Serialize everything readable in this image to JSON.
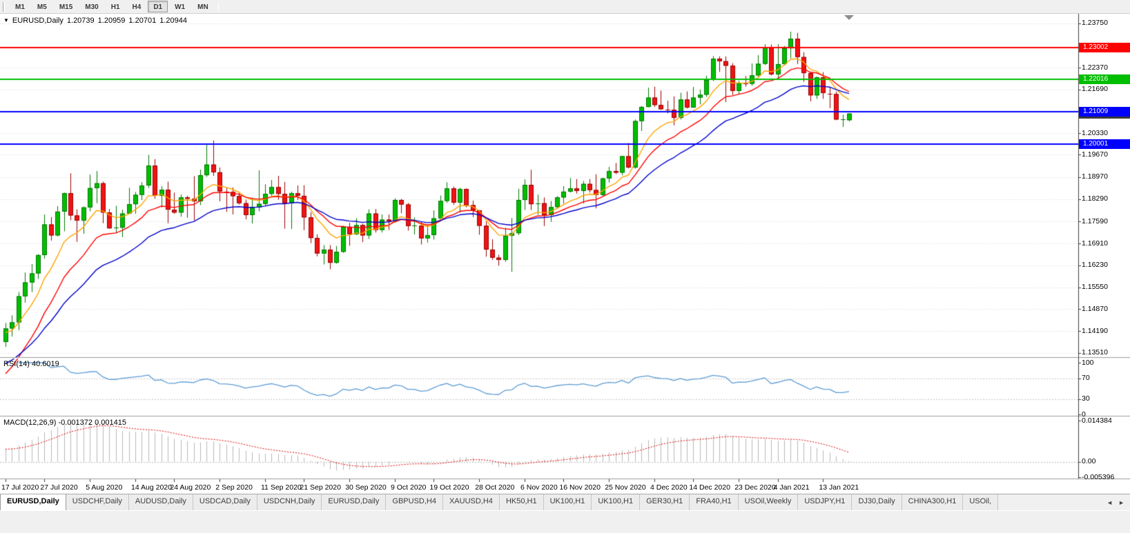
{
  "toolbar": {
    "periods": [
      {
        "label": "M1"
      },
      {
        "label": "M5"
      },
      {
        "label": "M15"
      },
      {
        "label": "M30"
      },
      {
        "label": "H1"
      },
      {
        "label": "H4"
      },
      {
        "label": "D1",
        "active": true
      },
      {
        "label": "W1"
      },
      {
        "label": "MN"
      }
    ]
  },
  "chart": {
    "dropdown_icon": "▼",
    "info": {
      "symbol": "EURUSD,Daily",
      "open": "1.20739",
      "high": "1.20959",
      "low": "1.20701",
      "close": "1.20944"
    }
  },
  "chart_data": {
    "type": "candlestick",
    "title": "EURUSD,Daily",
    "price_range": [
      1.134,
      1.24
    ],
    "colors": {
      "up_body": "#00BE00",
      "up_wick": "#007700",
      "down_body": "#F01414",
      "down_wick": "#990000",
      "grid": "#D9D9D9",
      "axis_line": "#3c3c3c",
      "separator": "#9a9a9a"
    },
    "y_ticks": [
      {
        "label": "1.23750",
        "v": 1.2375
      },
      {
        "label": "1.22370",
        "v": 1.2237
      },
      {
        "label": "1.21690",
        "v": 1.2169
      },
      {
        "label": "1.20330",
        "v": 1.2033
      },
      {
        "label": "1.19670",
        "v": 1.1967
      },
      {
        "label": "1.18970",
        "v": 1.1897
      },
      {
        "label": "1.18290",
        "v": 1.1829
      },
      {
        "label": "1.17590",
        "v": 1.1759
      },
      {
        "label": "1.16910",
        "v": 1.1691
      },
      {
        "label": "1.16230",
        "v": 1.1623
      },
      {
        "label": "1.15550",
        "v": 1.1555
      },
      {
        "label": "1.14870",
        "v": 1.1487
      },
      {
        "label": "1.14190",
        "v": 1.1419
      },
      {
        "label": "1.13510",
        "v": 1.1351
      }
    ],
    "x_ticks": [
      {
        "label": "17 Jul 2020",
        "i": 0
      },
      {
        "label": "27 Jul 2020",
        "i": 6
      },
      {
        "label": "5 Aug 2020",
        "i": 13
      },
      {
        "label": "14 Aug 2020",
        "i": 20
      },
      {
        "label": "24 Aug 2020",
        "i": 26
      },
      {
        "label": "2 Sep 2020",
        "i": 33
      },
      {
        "label": "11 Sep 2020",
        "i": 40
      },
      {
        "label": "21 Sep 2020",
        "i": 46
      },
      {
        "label": "30 Sep 2020",
        "i": 53
      },
      {
        "label": "9 Oct 2020",
        "i": 60
      },
      {
        "label": "19 Oct 2020",
        "i": 66
      },
      {
        "label": "28 Oct 2020",
        "i": 73
      },
      {
        "label": "6 Nov 2020",
        "i": 80
      },
      {
        "label": "16 Nov 2020",
        "i": 86
      },
      {
        "label": "25 Nov 2020",
        "i": 93
      },
      {
        "label": "4 Dec 2020",
        "i": 100
      },
      {
        "label": "14 Dec 2020",
        "i": 106
      },
      {
        "label": "23 Dec 2020",
        "i": 113
      },
      {
        "label": "4 Jan 2021",
        "i": 119
      },
      {
        "label": "13 Jan 2021",
        "i": 126
      }
    ],
    "hlines": [
      {
        "price": 1.23002,
        "label": "1.23002",
        "color": "#FF0000"
      },
      {
        "price": 1.22016,
        "label": "1.22016",
        "color": "#00BE00"
      },
      {
        "price": 1.21009,
        "label": "1.21009",
        "color": "#0000FF"
      },
      {
        "price": 1.20001,
        "label": "1.20001",
        "color": "#0000FF"
      }
    ],
    "current_price": {
      "value": 1.20944,
      "label": "1.20944",
      "box_color": "#3a3a3a"
    },
    "moving_averages": [
      {
        "name": "fast",
        "type": "ema",
        "period": 8,
        "seed": 1.141,
        "color": "#FFA500"
      },
      {
        "name": "medium",
        "type": "ema",
        "period": 14,
        "seed": 1.1265,
        "color": "#FF0000"
      },
      {
        "name": "slow",
        "type": "ema",
        "period": 25,
        "seed": 1.131,
        "color": "#0000CD"
      }
    ],
    "rsi": {
      "label": "RSI(14) 40.6019",
      "period": 14,
      "value": 40.6019,
      "color": "#5B9BD5",
      "range": [
        0,
        100
      ],
      "levels": [
        {
          "label": "100",
          "v": 100,
          "line": false
        },
        {
          "label": "70",
          "v": 70,
          "line": true
        },
        {
          "label": "30",
          "v": 30,
          "line": true
        },
        {
          "label": "0",
          "v": 0,
          "line": false
        }
      ]
    },
    "macd": {
      "label": "MACD(12,26,9) -0.001372 0.001415",
      "fast": 12,
      "slow": 26,
      "signal": 9,
      "main_value": -0.001372,
      "signal_value": 0.001415,
      "seed_fast": 1.134,
      "seed_slow": 1.13,
      "hist_color": "#B8B8B8",
      "signal_color": "#E00000",
      "range": [
        -0.005396,
        0.014384
      ],
      "axis_labels": [
        {
          "label": "0.014384",
          "v": 0.014384
        },
        {
          "label": "0.00",
          "v": 0
        },
        {
          "label": "-0.005396",
          "v": -0.005396
        }
      ]
    },
    "ohlc": [
      [
        1.1385,
        1.1444,
        1.137,
        1.1427
      ],
      [
        1.1427,
        1.1468,
        1.1402,
        1.1446
      ],
      [
        1.1446,
        1.154,
        1.1422,
        1.1527
      ],
      [
        1.1527,
        1.1601,
        1.1507,
        1.157
      ],
      [
        1.157,
        1.1627,
        1.154,
        1.1598
      ],
      [
        1.1598,
        1.1658,
        1.1581,
        1.1655
      ],
      [
        1.1655,
        1.1781,
        1.1644,
        1.175
      ],
      [
        1.175,
        1.1773,
        1.17,
        1.1716
      ],
      [
        1.1716,
        1.1807,
        1.1713,
        1.179
      ],
      [
        1.179,
        1.1849,
        1.1729,
        1.1847
      ],
      [
        1.1847,
        1.1909,
        1.1763,
        1.1778
      ],
      [
        1.1778,
        1.1797,
        1.1696,
        1.1762
      ],
      [
        1.1762,
        1.1806,
        1.1721,
        1.1803
      ],
      [
        1.1803,
        1.1905,
        1.1791,
        1.1863
      ],
      [
        1.1863,
        1.1916,
        1.1816,
        1.1878
      ],
      [
        1.1878,
        1.1883,
        1.1754,
        1.1787
      ],
      [
        1.1787,
        1.1798,
        1.1737,
        1.1738
      ],
      [
        1.1738,
        1.1808,
        1.1722,
        1.174
      ],
      [
        1.174,
        1.1796,
        1.1711,
        1.1784
      ],
      [
        1.1784,
        1.1864,
        1.1782,
        1.1813
      ],
      [
        1.1813,
        1.1851,
        1.1783,
        1.1842
      ],
      [
        1.1842,
        1.1881,
        1.1826,
        1.1871
      ],
      [
        1.1871,
        1.1966,
        1.1863,
        1.1933
      ],
      [
        1.1933,
        1.1953,
        1.183,
        1.1839
      ],
      [
        1.1839,
        1.1869,
        1.1803,
        1.1858
      ],
      [
        1.1858,
        1.1883,
        1.1754,
        1.1796
      ],
      [
        1.1796,
        1.1849,
        1.1783,
        1.1787
      ],
      [
        1.1787,
        1.1843,
        1.1774,
        1.1834
      ],
      [
        1.1834,
        1.1839,
        1.1771,
        1.183
      ],
      [
        1.183,
        1.19,
        1.1763,
        1.1822
      ],
      [
        1.1822,
        1.192,
        1.181,
        1.1903
      ],
      [
        1.1903,
        1.1997,
        1.1898,
        1.1936
      ],
      [
        1.1936,
        1.2011,
        1.1901,
        1.1912
      ],
      [
        1.1912,
        1.1927,
        1.1822,
        1.1853
      ],
      [
        1.1853,
        1.1864,
        1.1789,
        1.1851
      ],
      [
        1.1851,
        1.1865,
        1.1781,
        1.1838
      ],
      [
        1.1838,
        1.1848,
        1.1812,
        1.1816
      ],
      [
        1.1816,
        1.1827,
        1.1766,
        1.1779
      ],
      [
        1.1779,
        1.1834,
        1.1753,
        1.1803
      ],
      [
        1.1803,
        1.1918,
        1.1791,
        1.1814
      ],
      [
        1.1814,
        1.1875,
        1.1809,
        1.1845
      ],
      [
        1.1845,
        1.1888,
        1.1839,
        1.1866
      ],
      [
        1.1866,
        1.1901,
        1.1827,
        1.1845
      ],
      [
        1.1845,
        1.1882,
        1.1737,
        1.1816
      ],
      [
        1.1816,
        1.1852,
        1.1736,
        1.1847
      ],
      [
        1.1847,
        1.1871,
        1.1826,
        1.1839
      ],
      [
        1.1839,
        1.1872,
        1.1732,
        1.1772
      ],
      [
        1.1772,
        1.1788,
        1.1692,
        1.1708
      ],
      [
        1.1708,
        1.1719,
        1.1651,
        1.166
      ],
      [
        1.166,
        1.1686,
        1.1626,
        1.1672
      ],
      [
        1.1672,
        1.1686,
        1.1611,
        1.1631
      ],
      [
        1.1631,
        1.1683,
        1.1628,
        1.1665
      ],
      [
        1.1665,
        1.1746,
        1.1662,
        1.1743
      ],
      [
        1.1743,
        1.1755,
        1.1684,
        1.172
      ],
      [
        1.172,
        1.1769,
        1.1717,
        1.1748
      ],
      [
        1.1748,
        1.1752,
        1.1695,
        1.1716
      ],
      [
        1.1716,
        1.1797,
        1.1705,
        1.1784
      ],
      [
        1.1784,
        1.1798,
        1.1725,
        1.1733
      ],
      [
        1.1733,
        1.1781,
        1.1725,
        1.1765
      ],
      [
        1.1765,
        1.1781,
        1.1733,
        1.176
      ],
      [
        1.176,
        1.1831,
        1.1756,
        1.1826
      ],
      [
        1.1826,
        1.1829,
        1.1785,
        1.1812
      ],
      [
        1.1812,
        1.1817,
        1.1731,
        1.1745
      ],
      [
        1.1745,
        1.1772,
        1.1719,
        1.1746
      ],
      [
        1.1746,
        1.1758,
        1.1688,
        1.1707
      ],
      [
        1.1707,
        1.1747,
        1.1694,
        1.1717
      ],
      [
        1.1717,
        1.1794,
        1.1703,
        1.1769
      ],
      [
        1.1769,
        1.184,
        1.1762,
        1.1823
      ],
      [
        1.1823,
        1.1881,
        1.1817,
        1.1862
      ],
      [
        1.1862,
        1.1868,
        1.1811,
        1.1818
      ],
      [
        1.1818,
        1.1864,
        1.1787,
        1.186
      ],
      [
        1.186,
        1.1862,
        1.1803,
        1.181
      ],
      [
        1.181,
        1.1824,
        1.1773,
        1.1794
      ],
      [
        1.1794,
        1.1795,
        1.1718,
        1.1746
      ],
      [
        1.1746,
        1.1759,
        1.165,
        1.1672
      ],
      [
        1.1672,
        1.1704,
        1.164,
        1.1647
      ],
      [
        1.1647,
        1.1656,
        1.1622,
        1.164
      ],
      [
        1.164,
        1.174,
        1.1634,
        1.1715
      ],
      [
        1.1715,
        1.177,
        1.1603,
        1.1723
      ],
      [
        1.1723,
        1.1861,
        1.1717,
        1.1826
      ],
      [
        1.1826,
        1.189,
        1.1795,
        1.1873
      ],
      [
        1.1873,
        1.192,
        1.1795,
        1.1813
      ],
      [
        1.1813,
        1.1843,
        1.178,
        1.1816
      ],
      [
        1.1816,
        1.1834,
        1.1745,
        1.1779
      ],
      [
        1.1779,
        1.1823,
        1.1758,
        1.1804
      ],
      [
        1.1804,
        1.1838,
        1.1799,
        1.1834
      ],
      [
        1.1834,
        1.1869,
        1.1815,
        1.1852
      ],
      [
        1.1852,
        1.1894,
        1.1849,
        1.1862
      ],
      [
        1.1862,
        1.1891,
        1.1846,
        1.1854
      ],
      [
        1.1854,
        1.1885,
        1.1815,
        1.1876
      ],
      [
        1.1876,
        1.1891,
        1.1849,
        1.1857
      ],
      [
        1.1857,
        1.1906,
        1.18,
        1.1842
      ],
      [
        1.1842,
        1.1895,
        1.1838,
        1.1893
      ],
      [
        1.1893,
        1.1929,
        1.188,
        1.1916
      ],
      [
        1.1916,
        1.1941,
        1.1906,
        1.1911
      ],
      [
        1.1911,
        1.1963,
        1.1903,
        1.1962
      ],
      [
        1.1962,
        1.2003,
        1.1924,
        1.1927
      ],
      [
        1.1927,
        1.2076,
        1.1923,
        1.2071
      ],
      [
        1.2071,
        1.2118,
        1.204,
        1.2115
      ],
      [
        1.2115,
        1.2175,
        1.2114,
        1.2144
      ],
      [
        1.2144,
        1.2178,
        1.2115,
        1.2121
      ],
      [
        1.2121,
        1.2166,
        1.2106,
        1.2108
      ],
      [
        1.2108,
        1.2134,
        1.2095,
        1.2106
      ],
      [
        1.2106,
        1.2148,
        1.2058,
        1.2081
      ],
      [
        1.2081,
        1.2159,
        1.2076,
        1.2138
      ],
      [
        1.2138,
        1.2163,
        1.211,
        1.2113
      ],
      [
        1.2113,
        1.2177,
        1.2112,
        1.2144
      ],
      [
        1.2144,
        1.2169,
        1.2123,
        1.2153
      ],
      [
        1.2153,
        1.2212,
        1.2146,
        1.2199
      ],
      [
        1.2199,
        1.2273,
        1.2195,
        1.2265
      ],
      [
        1.2265,
        1.2272,
        1.2224,
        1.2257
      ],
      [
        1.2257,
        1.2272,
        1.213,
        1.2243
      ],
      [
        1.2243,
        1.2251,
        1.2152,
        1.2165
      ],
      [
        1.2165,
        1.2196,
        1.2154,
        1.2189
      ],
      [
        1.2189,
        1.2211,
        1.2178,
        1.2187
      ],
      [
        1.2187,
        1.225,
        1.2181,
        1.2213
      ],
      [
        1.2213,
        1.2276,
        1.2209,
        1.2249
      ],
      [
        1.2249,
        1.231,
        1.2245,
        1.2299
      ],
      [
        1.2299,
        1.2309,
        1.2213,
        1.2216
      ],
      [
        1.2216,
        1.231,
        1.2202,
        1.2248
      ],
      [
        1.2248,
        1.2304,
        1.2244,
        1.2297
      ],
      [
        1.2297,
        1.2349,
        1.2266,
        1.2327
      ],
      [
        1.2327,
        1.2345,
        1.2248,
        1.227
      ],
      [
        1.227,
        1.2285,
        1.2193,
        1.222
      ],
      [
        1.222,
        1.2223,
        1.2132,
        1.2151
      ],
      [
        1.2151,
        1.2209,
        1.214,
        1.2207
      ],
      [
        1.2207,
        1.2223,
        1.214,
        1.2158
      ],
      [
        1.2158,
        1.2176,
        1.2111,
        1.2155
      ],
      [
        1.2155,
        1.2163,
        1.2074,
        1.2076
      ],
      [
        1.2076,
        1.2091,
        1.2053,
        1.2077
      ],
      [
        1.20739,
        1.20959,
        1.20701,
        1.20944
      ]
    ]
  },
  "tabs": {
    "scroll_left_icon": "◄",
    "scroll_right_icon": "►",
    "items": [
      {
        "label": "EURUSD,Daily",
        "active": true
      },
      {
        "label": "USDCHF,Daily"
      },
      {
        "label": "AUDUSD,Daily"
      },
      {
        "label": "USDCAD,Daily"
      },
      {
        "label": "USDCNH,Daily"
      },
      {
        "label": "EURUSD,Daily"
      },
      {
        "label": "GBPUSD,H4"
      },
      {
        "label": "XAUUSD,H4"
      },
      {
        "label": "HK50,H1"
      },
      {
        "label": "UK100,H1"
      },
      {
        "label": "UK100,H1"
      },
      {
        "label": "GER30,H1"
      },
      {
        "label": "FRA40,H1"
      },
      {
        "label": "USOil,Weekly"
      },
      {
        "label": "USDJPY,H1"
      },
      {
        "label": "DJ30,Daily"
      },
      {
        "label": "CHINA300,H1"
      },
      {
        "label": "USOil,"
      }
    ]
  }
}
